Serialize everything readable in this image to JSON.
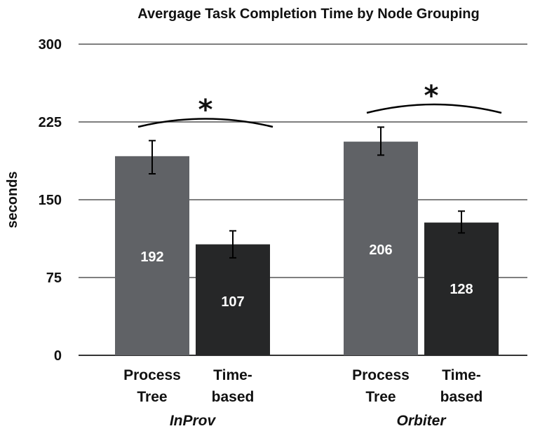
{
  "chart_data": {
    "type": "bar",
    "title": "Avergage Task Completion Time by Node Grouping",
    "xlabel": "",
    "ylabel": "seconds",
    "ylim": [
      0,
      300
    ],
    "yticks": [
      0,
      75,
      150,
      225,
      300
    ],
    "grid": true,
    "groups": [
      {
        "name": "InProv",
        "significance": "*",
        "bars": [
          {
            "label_line1": "Process",
            "label_line2": "Tree",
            "value": 192,
            "error_low": 175,
            "error_high": 207,
            "color": "#606266"
          },
          {
            "label_line1": "Time-",
            "label_line2": "based",
            "value": 107,
            "error_low": 94,
            "error_high": 120,
            "color": "#262728"
          }
        ]
      },
      {
        "name": "Orbiter",
        "significance": "*",
        "bars": [
          {
            "label_line1": "Process",
            "label_line2": "Tree",
            "value": 206,
            "error_low": 193,
            "error_high": 220,
            "color": "#606266"
          },
          {
            "label_line1": "Time-",
            "label_line2": "based",
            "value": 128,
            "error_low": 118,
            "error_high": 139,
            "color": "#262728"
          }
        ]
      }
    ]
  },
  "colors": {
    "grid": "#555555",
    "axis": "#333333",
    "text": "#111111",
    "value_label": "#ffffff"
  }
}
